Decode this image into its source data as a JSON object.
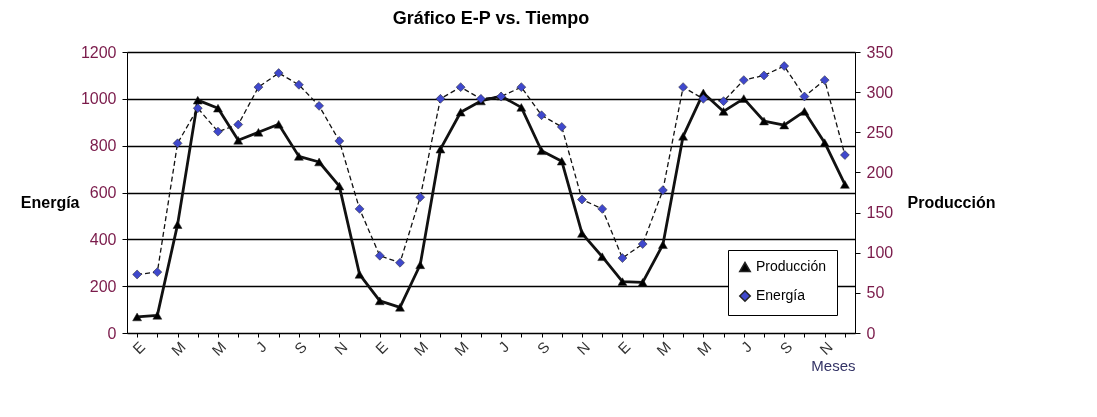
{
  "chart_data": {
    "type": "line",
    "title": "Gráfico E-P vs. Tiempo",
    "xlabel": "Meses",
    "ylabel": "Energía",
    "y2label": "Producción",
    "categories": [
      "E",
      null,
      "M",
      null,
      "M",
      null,
      "J",
      null,
      "S",
      null,
      "N",
      null,
      "E",
      null,
      "M",
      null,
      "M",
      null,
      "J",
      null,
      "S",
      null,
      "N",
      null,
      "E",
      null,
      "M",
      null,
      "M",
      null,
      "J",
      null,
      "S",
      null,
      "N",
      null
    ],
    "series": [
      {
        "name": "Producción",
        "color": "#000000",
        "axis": "y2",
        "marker": "triangle",
        "line_style": "solid",
        "values": [
          20,
          22,
          135,
          290,
          280,
          240,
          250,
          260,
          220,
          213,
          183,
          73,
          40,
          32,
          85,
          229,
          275,
          289,
          295,
          281,
          227,
          214,
          124,
          95,
          64,
          63,
          110,
          245,
          299,
          276,
          292,
          264,
          259,
          276,
          237,
          185
        ]
      },
      {
        "name": "Energía",
        "color": "#3f48cc",
        "marker": "diamond",
        "line_style": "dashed",
        "values": [
          250,
          260,
          810,
          960,
          860,
          890,
          1050,
          1110,
          1060,
          970,
          820,
          530,
          330,
          300,
          580,
          1000,
          1050,
          1000,
          1010,
          1050,
          930,
          880,
          570,
          530,
          320,
          380,
          610,
          1050,
          1000,
          990,
          1080,
          1100,
          1140,
          1010,
          1080,
          760
        ]
      }
    ],
    "ylim": [
      0,
      1200
    ],
    "yticks": [
      0,
      200,
      400,
      600,
      800,
      1000,
      1200
    ],
    "y2lim": [
      0,
      350
    ],
    "y2ticks": [
      0,
      50,
      100,
      150,
      200,
      250,
      300,
      350
    ],
    "grid": "y",
    "legend": "bottom right"
  }
}
